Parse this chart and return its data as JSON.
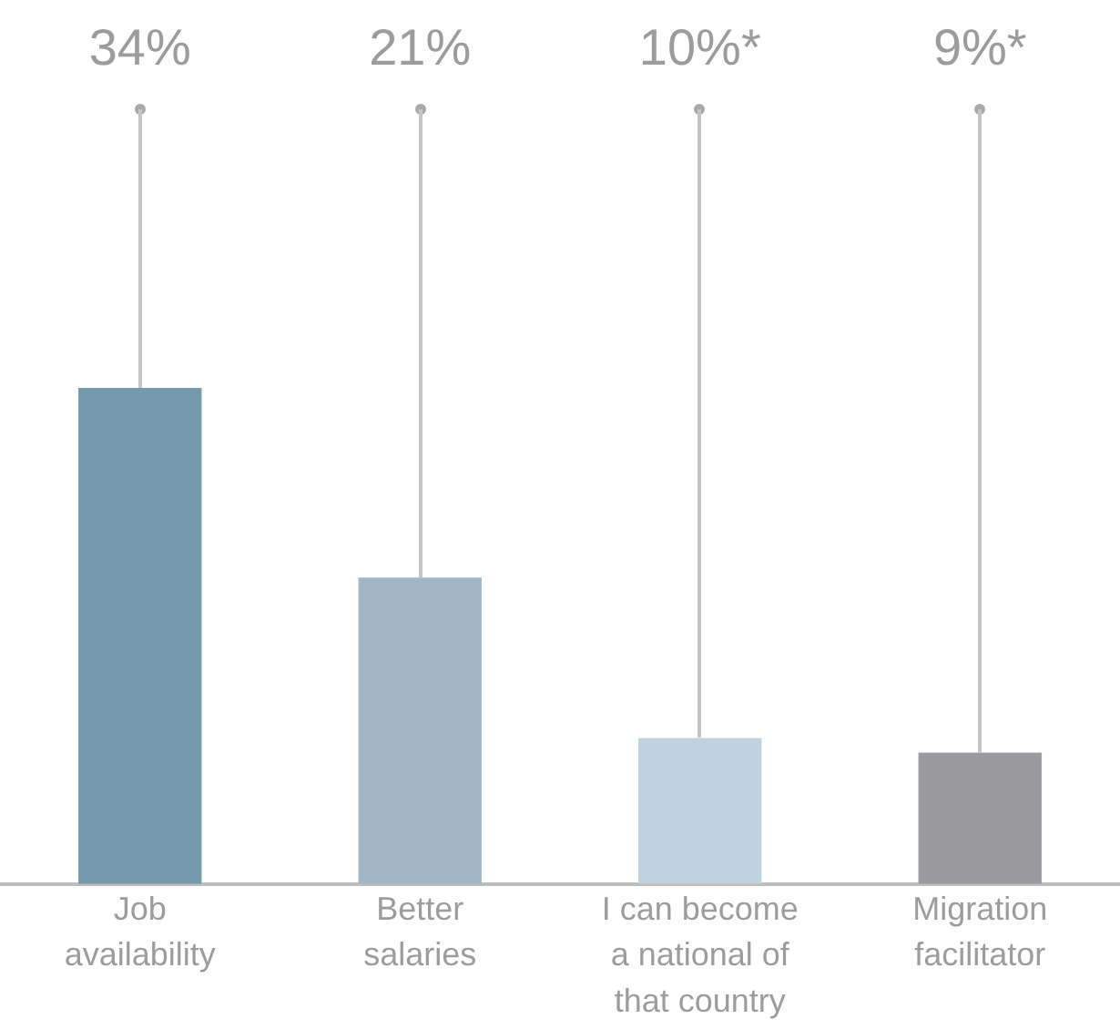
{
  "chart_data": {
    "type": "bar",
    "categories": [
      "Job availability",
      "Better salaries",
      "I can become a national of that country",
      "Migration facilitator"
    ],
    "values": [
      34,
      21,
      10,
      9
    ],
    "colors": [
      "#759aae",
      "#a0b6c4",
      "#c3d1dc",
      "#9a9a9e"
    ],
    "value_labels": [
      "34%",
      "21%",
      "10%*",
      "9%*"
    ]
  }
}
